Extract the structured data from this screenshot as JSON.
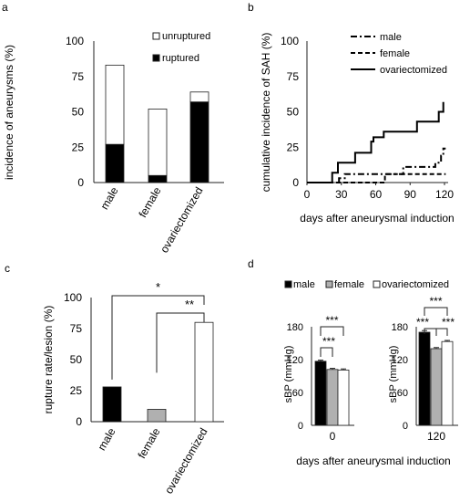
{
  "panels": [
    {
      "letter": "a",
      "chart_data": {
        "type": "bar",
        "stacked": true,
        "categories": [
          "male",
          "female",
          "ovariectomized"
        ],
        "series": [
          {
            "name": "ruptured",
            "values": [
              27,
              5,
              57
            ],
            "color": "#000000"
          },
          {
            "name": "unruptured",
            "values": [
              56,
              47,
              7
            ],
            "color": "#ffffff"
          }
        ],
        "ylabel": "incidence of aneurysms (%)",
        "ylim": [
          0,
          100
        ],
        "yticks": [
          0,
          25,
          50,
          75,
          100
        ],
        "legend": "top-right"
      }
    },
    {
      "letter": "b",
      "chart_data": {
        "type": "line",
        "step": true,
        "xlabel": "days after aneurysmal induction",
        "ylabel": "cumulative incidence of SAH (%)",
        "xlim": [
          0,
          120
        ],
        "ylim": [
          0,
          100
        ],
        "xticks": [
          0,
          30,
          60,
          90,
          120
        ],
        "yticks": [
          0,
          25,
          50,
          75,
          100
        ],
        "legend": "top-right",
        "series": [
          {
            "name": "male",
            "style": "dashdot",
            "points": [
              [
                28,
                0
              ],
              [
                28,
                3
              ],
              [
                33,
                3
              ],
              [
                33,
                6
              ],
              [
                84,
                6
              ],
              [
                84,
                11
              ],
              [
                112,
                11
              ],
              [
                112,
                14
              ],
              [
                117,
                14
              ],
              [
                117,
                19
              ],
              [
                119,
                19
              ],
              [
                119,
                24
              ],
              [
                121,
                24
              ]
            ]
          },
          {
            "name": "female",
            "style": "dashed",
            "points": [
              [
                0,
                0
              ],
              [
                68,
                0
              ],
              [
                68,
                6
              ],
              [
                121,
                6
              ]
            ]
          },
          {
            "name": "ovariectomized",
            "style": "solid",
            "points": [
              [
                0,
                0
              ],
              [
                22,
                0
              ],
              [
                22,
                7
              ],
              [
                27,
                7
              ],
              [
                27,
                14
              ],
              [
                42,
                14
              ],
              [
                42,
                21
              ],
              [
                56,
                21
              ],
              [
                56,
                29
              ],
              [
                58,
                29
              ],
              [
                58,
                32
              ],
              [
                67,
                32
              ],
              [
                67,
                36
              ],
              [
                96,
                36
              ],
              [
                96,
                43
              ],
              [
                115,
                43
              ],
              [
                115,
                50
              ],
              [
                119,
                50
              ],
              [
                119,
                57
              ]
            ]
          }
        ]
      }
    },
    {
      "letter": "c",
      "chart_data": {
        "type": "bar",
        "categories": [
          "male",
          "female",
          "ovariectomized"
        ],
        "values": [
          28,
          10,
          80
        ],
        "colors": [
          "#000000",
          "#b0b0b0",
          "#ffffff"
        ],
        "ylabel": "rupture rate/lesion (%)",
        "ylim": [
          0,
          100
        ],
        "yticks": [
          0,
          25,
          50,
          75,
          100
        ],
        "annotations": [
          {
            "from": "male",
            "to": "ovariectomized",
            "text": "*"
          },
          {
            "from": "female",
            "to": "ovariectomized",
            "text": "**"
          }
        ]
      }
    },
    {
      "letter": "d",
      "chart_data": [
        {
          "type": "bar",
          "group": "0",
          "categories": [
            "male",
            "female",
            "ovariectomized"
          ],
          "values": [
            117,
            102,
            101
          ],
          "errors": [
            2,
            2,
            2
          ],
          "colors": [
            "#000000",
            "#b0b0b0",
            "#ffffff"
          ],
          "ylabel": "sBP (mmHg)",
          "ylim": [
            0,
            180
          ],
          "yticks": [
            0,
            60,
            120,
            180
          ],
          "annotations": [
            {
              "from": "male",
              "to": "female",
              "text": "***"
            },
            {
              "from": "male",
              "to": "ovariectomized",
              "text": "***"
            }
          ]
        },
        {
          "type": "bar",
          "group": "120",
          "categories": [
            "male",
            "female",
            "ovariectomized"
          ],
          "values": [
            170,
            140,
            153
          ],
          "errors": [
            3,
            2,
            2
          ],
          "colors": [
            "#000000",
            "#b0b0b0",
            "#ffffff"
          ],
          "ylabel": "sBP (mmHg)",
          "ylim": [
            0,
            180
          ],
          "yticks": [
            0,
            60,
            120,
            180
          ],
          "annotations": [
            {
              "from": "male",
              "to": "female",
              "text": "***"
            },
            {
              "from": "female",
              "to": "ovariectomized",
              "text": "***"
            },
            {
              "from": "male",
              "to": "ovariectomized",
              "text": "***"
            }
          ]
        }
      ],
      "legend": [
        "male",
        "female",
        "ovariectomized"
      ],
      "xlabel": "days after aneurysmal induction"
    }
  ]
}
